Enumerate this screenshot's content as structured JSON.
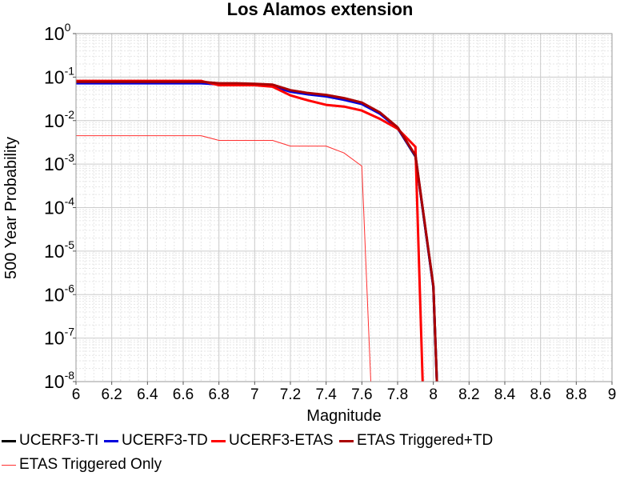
{
  "chart_data": {
    "type": "line",
    "title": "Los Alamos extension",
    "xlabel": "Magnitude",
    "ylabel": "500 Year Probability",
    "xlim": [
      6,
      9
    ],
    "ylim": [
      1e-08,
      1
    ],
    "yscale": "log",
    "grid": true,
    "legend_position": "bottom",
    "x_ticks": [
      "6",
      "6.2",
      "6.4",
      "6.6",
      "6.8",
      "7",
      "7.2",
      "7.4",
      "7.6",
      "7.8",
      "8",
      "8.2",
      "8.4",
      "8.6",
      "8.8",
      "9"
    ],
    "y_ticks": [
      {
        "base": "10",
        "exp": "0"
      },
      {
        "base": "10",
        "exp": "-1"
      },
      {
        "base": "10",
        "exp": "-2"
      },
      {
        "base": "10",
        "exp": "-3"
      },
      {
        "base": "10",
        "exp": "-4"
      },
      {
        "base": "10",
        "exp": "-5"
      },
      {
        "base": "10",
        "exp": "-6"
      },
      {
        "base": "10",
        "exp": "-7"
      },
      {
        "base": "10",
        "exp": "-8"
      }
    ],
    "series": [
      {
        "name": "UCERF3-TI",
        "color": "#000000",
        "x": [
          6.0,
          6.1,
          6.2,
          6.3,
          6.4,
          6.5,
          6.6,
          6.7,
          6.8,
          6.9,
          7.0,
          7.1,
          7.2,
          7.3,
          7.4,
          7.5,
          7.6,
          7.7,
          7.8,
          7.9,
          8.0,
          8.02
        ],
        "y": [
          0.075,
          0.075,
          0.075,
          0.075,
          0.075,
          0.075,
          0.075,
          0.075,
          0.07,
          0.07,
          0.068,
          0.065,
          0.048,
          0.042,
          0.038,
          0.032,
          0.025,
          0.015,
          0.0068,
          0.0015,
          1.5e-06,
          1e-08
        ]
      },
      {
        "name": "UCERF3-TD",
        "color": "#0000dd",
        "x": [
          6.0,
          6.1,
          6.2,
          6.3,
          6.4,
          6.5,
          6.6,
          6.7,
          6.8,
          6.9,
          7.0,
          7.1,
          7.2,
          7.3,
          7.4,
          7.5,
          7.6,
          7.7,
          7.8,
          7.9,
          8.0,
          8.02
        ],
        "y": [
          0.072,
          0.072,
          0.072,
          0.072,
          0.072,
          0.072,
          0.072,
          0.072,
          0.068,
          0.068,
          0.066,
          0.062,
          0.046,
          0.04,
          0.036,
          0.03,
          0.024,
          0.0145,
          0.0067,
          0.00155,
          1.5e-06,
          1e-08
        ]
      },
      {
        "name": "UCERF3-ETAS",
        "color": "#ff0000",
        "x": [
          6.0,
          6.1,
          6.2,
          6.3,
          6.4,
          6.5,
          6.6,
          6.7,
          6.8,
          6.9,
          7.0,
          7.1,
          7.2,
          7.3,
          7.4,
          7.5,
          7.6,
          7.7,
          7.8,
          7.9,
          7.94
        ],
        "y": [
          0.082,
          0.082,
          0.082,
          0.082,
          0.082,
          0.082,
          0.082,
          0.082,
          0.065,
          0.065,
          0.065,
          0.06,
          0.038,
          0.029,
          0.023,
          0.021,
          0.017,
          0.011,
          0.0065,
          0.0025,
          1e-08
        ]
      },
      {
        "name": "ETAS Triggered+TD",
        "color": "#aa0000",
        "x": [
          6.0,
          6.1,
          6.2,
          6.3,
          6.4,
          6.5,
          6.6,
          6.7,
          6.8,
          6.9,
          7.0,
          7.1,
          7.2,
          7.3,
          7.4,
          7.5,
          7.6,
          7.7,
          7.8,
          7.9,
          8.0,
          8.02
        ],
        "y": [
          0.078,
          0.078,
          0.078,
          0.078,
          0.078,
          0.078,
          0.078,
          0.078,
          0.072,
          0.072,
          0.07,
          0.067,
          0.05,
          0.043,
          0.039,
          0.033,
          0.026,
          0.0155,
          0.007,
          0.0016,
          1.6e-06,
          1e-08
        ]
      },
      {
        "name": "ETAS Triggered Only",
        "color": "#ff3030",
        "thin": true,
        "x": [
          6.0,
          6.1,
          6.2,
          6.3,
          6.4,
          6.5,
          6.6,
          6.7,
          6.8,
          6.9,
          7.0,
          7.1,
          7.2,
          7.3,
          7.4,
          7.5,
          7.6,
          7.65
        ],
        "y": [
          0.0045,
          0.0045,
          0.0045,
          0.0045,
          0.0045,
          0.0045,
          0.0045,
          0.0045,
          0.0035,
          0.0035,
          0.0035,
          0.0035,
          0.0026,
          0.0026,
          0.0026,
          0.0018,
          0.0009,
          1e-08
        ]
      }
    ]
  }
}
